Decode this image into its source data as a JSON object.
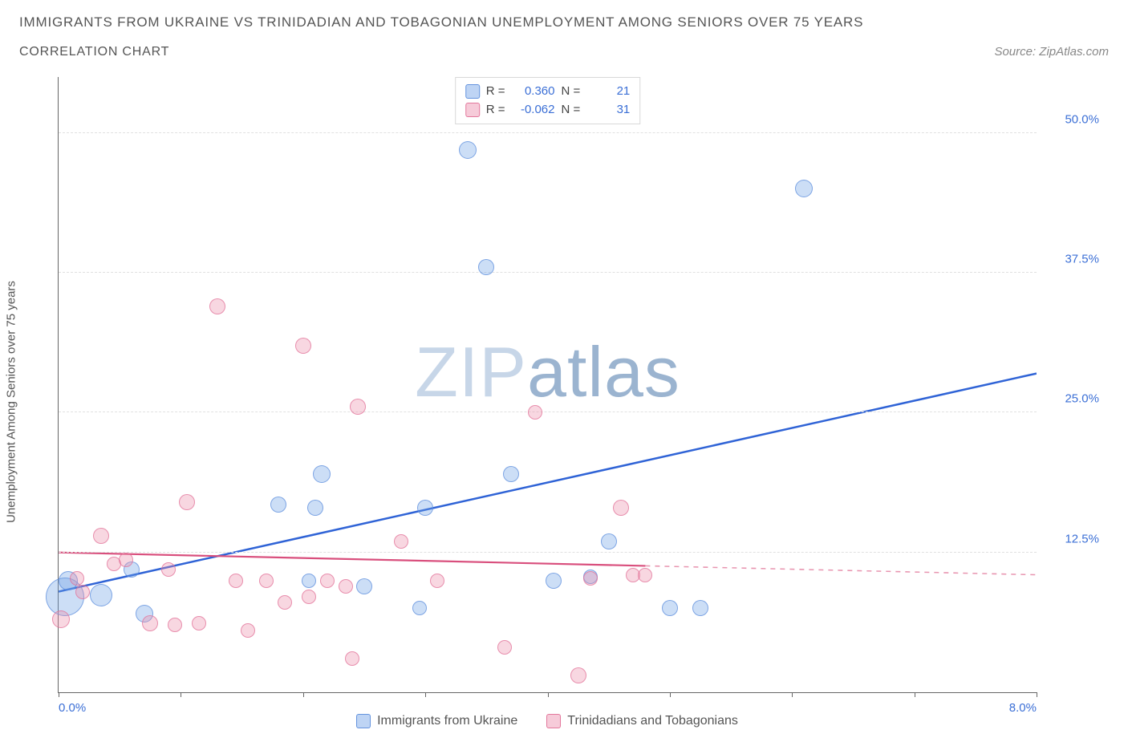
{
  "header": {
    "title": "IMMIGRANTS FROM UKRAINE VS TRINIDADIAN AND TOBAGONIAN UNEMPLOYMENT AMONG SENIORS OVER 75 YEARS",
    "subtitle": "CORRELATION CHART",
    "source": "Source: ZipAtlas.com"
  },
  "chart": {
    "type": "scatter",
    "ylabel": "Unemployment Among Seniors over 75 years",
    "xlim": [
      0,
      8
    ],
    "ylim": [
      0,
      55
    ],
    "x_ticks": [
      0,
      1,
      2,
      3,
      4,
      5,
      6,
      7,
      8
    ],
    "x_tick_labels_shown": {
      "0": "0.0%",
      "8": "8.0%"
    },
    "y_ticks": [
      12.5,
      25.0,
      37.5,
      50.0
    ],
    "y_tick_labels": [
      "12.5%",
      "25.0%",
      "37.5%",
      "50.0%"
    ],
    "grid_color": "#e0e0e0",
    "background_color": "#ffffff",
    "watermark": {
      "light": "ZIP",
      "dark": "atlas"
    },
    "series": [
      {
        "name": "Immigrants from Ukraine",
        "color_fill": "rgba(110,160,230,0.35)",
        "color_stroke": "rgba(90,140,220,0.8)",
        "class": "blue",
        "stats": {
          "R": "0.360",
          "N": "21"
        },
        "trend": {
          "x1": 0,
          "y1": 9.0,
          "x2": 8.0,
          "y2": 28.5,
          "solid_until_x": 8.0,
          "stroke": "#2f63d6",
          "width": 2.5
        },
        "points": [
          {
            "x": 0.05,
            "y": 8.5,
            "r": 24
          },
          {
            "x": 0.08,
            "y": 10.0,
            "r": 12
          },
          {
            "x": 0.35,
            "y": 8.7,
            "r": 14
          },
          {
            "x": 0.7,
            "y": 7.0,
            "r": 11
          },
          {
            "x": 0.6,
            "y": 11.0,
            "r": 10
          },
          {
            "x": 1.8,
            "y": 16.8,
            "r": 10
          },
          {
            "x": 2.1,
            "y": 16.5,
            "r": 10
          },
          {
            "x": 2.05,
            "y": 10.0,
            "r": 9
          },
          {
            "x": 2.15,
            "y": 19.5,
            "r": 11
          },
          {
            "x": 2.5,
            "y": 9.5,
            "r": 10
          },
          {
            "x": 3.0,
            "y": 16.5,
            "r": 10
          },
          {
            "x": 2.95,
            "y": 7.5,
            "r": 9
          },
          {
            "x": 3.35,
            "y": 48.5,
            "r": 11
          },
          {
            "x": 3.5,
            "y": 38.0,
            "r": 10
          },
          {
            "x": 3.7,
            "y": 19.5,
            "r": 10
          },
          {
            "x": 4.05,
            "y": 10.0,
            "r": 10
          },
          {
            "x": 4.35,
            "y": 10.3,
            "r": 9
          },
          {
            "x": 4.5,
            "y": 13.5,
            "r": 10
          },
          {
            "x": 5.0,
            "y": 7.5,
            "r": 10
          },
          {
            "x": 5.25,
            "y": 7.5,
            "r": 10
          },
          {
            "x": 6.1,
            "y": 45.0,
            "r": 11
          }
        ]
      },
      {
        "name": "Trinidadians and Tobagonians",
        "color_fill": "rgba(235,140,170,0.35)",
        "color_stroke": "rgba(225,110,150,0.8)",
        "class": "pink",
        "stats": {
          "R": "-0.062",
          "N": "31"
        },
        "trend": {
          "x1": 0,
          "y1": 12.5,
          "x2": 8.0,
          "y2": 10.5,
          "solid_until_x": 4.8,
          "stroke": "#d94f7d",
          "width": 2.2
        },
        "points": [
          {
            "x": 0.02,
            "y": 6.5,
            "r": 11
          },
          {
            "x": 0.15,
            "y": 10.2,
            "r": 9
          },
          {
            "x": 0.2,
            "y": 9.0,
            "r": 9
          },
          {
            "x": 0.35,
            "y": 14.0,
            "r": 10
          },
          {
            "x": 0.45,
            "y": 11.5,
            "r": 9
          },
          {
            "x": 0.55,
            "y": 11.8,
            "r": 9
          },
          {
            "x": 0.75,
            "y": 6.2,
            "r": 10
          },
          {
            "x": 0.9,
            "y": 11.0,
            "r": 9
          },
          {
            "x": 0.95,
            "y": 6.0,
            "r": 9
          },
          {
            "x": 1.05,
            "y": 17.0,
            "r": 10
          },
          {
            "x": 1.15,
            "y": 6.2,
            "r": 9
          },
          {
            "x": 1.3,
            "y": 34.5,
            "r": 10
          },
          {
            "x": 1.45,
            "y": 10.0,
            "r": 9
          },
          {
            "x": 1.55,
            "y": 5.5,
            "r": 9
          },
          {
            "x": 1.7,
            "y": 10.0,
            "r": 9
          },
          {
            "x": 1.85,
            "y": 8.0,
            "r": 9
          },
          {
            "x": 2.0,
            "y": 31.0,
            "r": 10
          },
          {
            "x": 2.05,
            "y": 8.5,
            "r": 9
          },
          {
            "x": 2.2,
            "y": 10.0,
            "r": 9
          },
          {
            "x": 2.35,
            "y": 9.5,
            "r": 9
          },
          {
            "x": 2.4,
            "y": 3.0,
            "r": 9
          },
          {
            "x": 2.45,
            "y": 25.5,
            "r": 10
          },
          {
            "x": 2.8,
            "y": 13.5,
            "r": 9
          },
          {
            "x": 3.1,
            "y": 10.0,
            "r": 9
          },
          {
            "x": 3.65,
            "y": 4.0,
            "r": 9
          },
          {
            "x": 3.9,
            "y": 25.0,
            "r": 9
          },
          {
            "x": 4.25,
            "y": 1.5,
            "r": 10
          },
          {
            "x": 4.35,
            "y": 10.2,
            "r": 9
          },
          {
            "x": 4.6,
            "y": 16.5,
            "r": 10
          },
          {
            "x": 4.7,
            "y": 10.5,
            "r": 9
          },
          {
            "x": 4.8,
            "y": 10.5,
            "r": 9
          }
        ]
      }
    ],
    "legend_top_labels": {
      "R": "R =",
      "N": "N ="
    },
    "bottom_legend": [
      {
        "class": "blue",
        "label": "Immigrants from Ukraine"
      },
      {
        "class": "pink",
        "label": "Trinidadians and Tobagonians"
      }
    ]
  }
}
